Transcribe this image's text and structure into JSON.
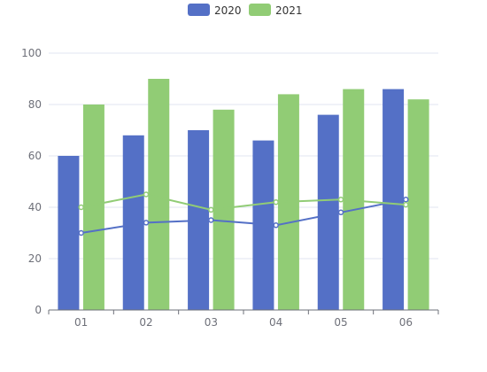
{
  "chart_data": {
    "type": "bar",
    "categories": [
      "01",
      "02",
      "03",
      "04",
      "05",
      "06"
    ],
    "series": [
      {
        "name": "2020",
        "type": "bar",
        "color": "#5470c6",
        "values": [
          60,
          68,
          70,
          66,
          76,
          86
        ]
      },
      {
        "name": "2021",
        "type": "bar",
        "color": "#91cc75",
        "values": [
          80,
          90,
          78,
          84,
          86,
          82
        ]
      },
      {
        "name": "",
        "type": "line",
        "color": "#5470c6",
        "values": [
          30,
          34,
          35,
          33,
          38,
          43
        ]
      },
      {
        "name": "",
        "type": "line",
        "color": "#91cc75",
        "values": [
          40,
          45,
          39,
          42,
          43,
          41
        ]
      }
    ],
    "ylim": [
      0,
      100
    ],
    "yticks": [
      0,
      20,
      40,
      60,
      80,
      100
    ],
    "grid": true,
    "legend": "top-center",
    "title": "",
    "xlabel": "",
    "ylabel": ""
  }
}
